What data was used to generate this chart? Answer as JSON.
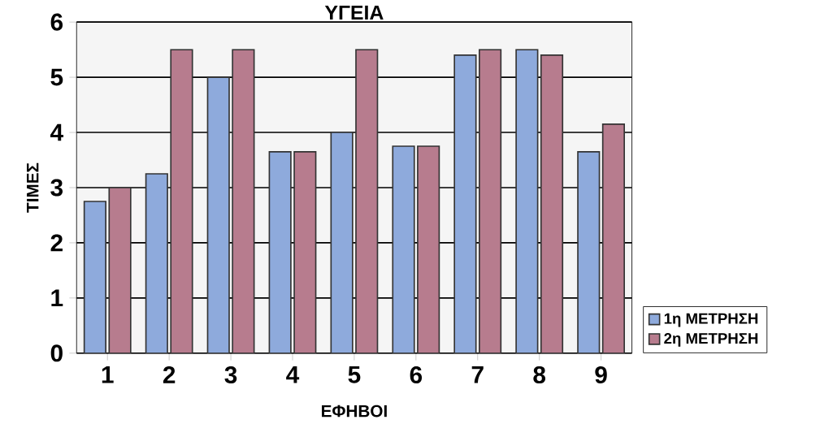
{
  "chart_data": {
    "type": "bar",
    "title": "ΥΓΕΙΑ",
    "xlabel": "ΕΦΗΒΟΙ",
    "ylabel": "ΤΙΜΕΣ",
    "categories": [
      "1",
      "2",
      "3",
      "4",
      "5",
      "6",
      "7",
      "8",
      "9"
    ],
    "series": [
      {
        "name": "1η ΜΕΤΡΗΣΗ",
        "color": "#8eaadc",
        "values": [
          2.75,
          3.25,
          5.0,
          3.65,
          4.0,
          3.75,
          5.4,
          5.5,
          3.65
        ]
      },
      {
        "name": "2η ΜΕΤΡΗΣΗ",
        "color": "#b77c8e",
        "values": [
          3.0,
          5.5,
          5.5,
          3.65,
          5.5,
          3.75,
          5.5,
          5.4,
          4.15
        ]
      }
    ],
    "ylim": [
      0,
      6
    ],
    "yticks": [
      0,
      1,
      2,
      3,
      4,
      5,
      6
    ],
    "grid": "y",
    "legend": "bottom right"
  }
}
